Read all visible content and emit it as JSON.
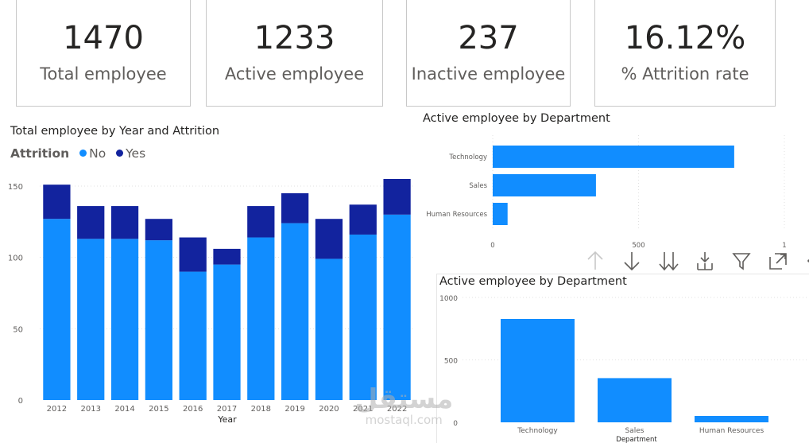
{
  "cards": [
    {
      "value": "1470",
      "label": "Total employee"
    },
    {
      "value": "1233",
      "label": "Active employee"
    },
    {
      "value": "237",
      "label": "Inactive employee"
    },
    {
      "value": "16.12%",
      "label": "% Attrition rate"
    }
  ],
  "colors": {
    "no": "#118dff",
    "yes": "#12239e",
    "gridline": "#e1e1e1",
    "axis_text": "#605e5c"
  },
  "toolbar_icons": [
    "arrow-up-icon",
    "arrow-down-icon",
    "double-arrow-down-icon",
    "expand-hierarchy-icon",
    "filter-icon",
    "focus-mode-icon",
    "more-options-icon"
  ],
  "watermark": {
    "arabic": "مستقل",
    "latin": "mostaql.com"
  },
  "chart_data": [
    {
      "type": "bar",
      "stacked": true,
      "title": "Total employee by Year and Attrition",
      "legend_title": "Attrition",
      "legend_position": "top-left",
      "xlabel": "Year",
      "ylabel": "",
      "ylim": [
        0,
        155
      ],
      "yticks": [
        0,
        50,
        100,
        150
      ],
      "categories": [
        "2012",
        "2013",
        "2014",
        "2015",
        "2016",
        "2017",
        "2018",
        "2019",
        "2020",
        "2021",
        "2022"
      ],
      "series": [
        {
          "name": "No",
          "values": [
            127,
            113,
            113,
            112,
            90,
            95,
            114,
            124,
            99,
            116,
            130
          ]
        },
        {
          "name": "Yes",
          "values": [
            24,
            23,
            23,
            15,
            24,
            11,
            22,
            21,
            28,
            21,
            25
          ]
        }
      ]
    },
    {
      "type": "bar",
      "orientation": "horizontal",
      "title": "Active employee by Department",
      "categories": [
        "Technology",
        "Sales",
        "Human Resources"
      ],
      "values": [
        828,
        354,
        51
      ],
      "xlim": [
        0,
        1000
      ],
      "xticks": [
        "0",
        "500",
        "1"
      ]
    },
    {
      "type": "bar",
      "title": "Active employee by Department",
      "xlabel": "Department",
      "categories": [
        "Technology",
        "Sales",
        "Human Resources"
      ],
      "values": [
        828,
        354,
        51
      ],
      "ylim": [
        0,
        1000
      ],
      "yticks": [
        0,
        500,
        1000
      ]
    }
  ]
}
